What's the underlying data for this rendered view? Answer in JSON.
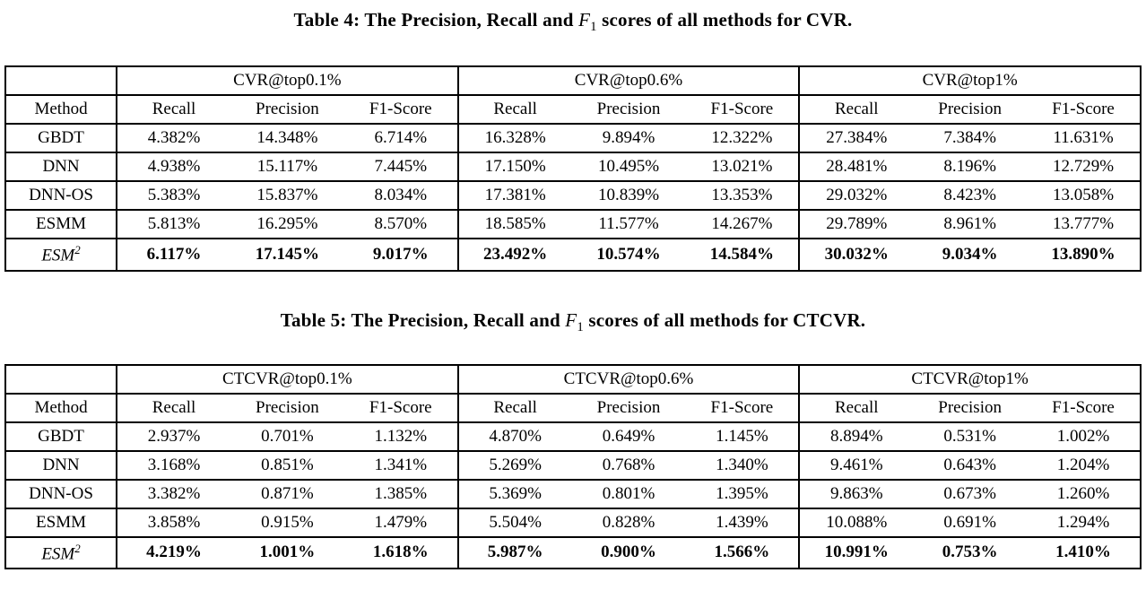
{
  "tables": [
    {
      "caption": {
        "prefix": "Table 4: The Precision, Recall and",
        "math_var": "F",
        "math_sub": "1",
        "suffix": "scores of all methods for CVR."
      },
      "method_header": "Method",
      "groups": [
        "CVR@top0.1%",
        "CVR@top0.6%",
        "CVR@top1%"
      ],
      "sub_headers": [
        "Recall",
        "Precision",
        "F1-Score"
      ],
      "rows": [
        {
          "method": "GBDT",
          "italic": false,
          "bold": false,
          "values": [
            "4.382%",
            "14.348%",
            "6.714%",
            "16.328%",
            "9.894%",
            "12.322%",
            "27.384%",
            "7.384%",
            "11.631%"
          ]
        },
        {
          "method": "DNN",
          "italic": false,
          "bold": false,
          "values": [
            "4.938%",
            "15.117%",
            "7.445%",
            "17.150%",
            "10.495%",
            "13.021%",
            "28.481%",
            "8.196%",
            "12.729%"
          ]
        },
        {
          "method": "DNN-OS",
          "italic": false,
          "bold": false,
          "values": [
            "5.383%",
            "15.837%",
            "8.034%",
            "17.381%",
            "10.839%",
            "13.353%",
            "29.032%",
            "8.423%",
            "13.058%"
          ]
        },
        {
          "method": "ESMM",
          "italic": false,
          "bold": false,
          "values": [
            "5.813%",
            "16.295%",
            "8.570%",
            "18.585%",
            "11.577%",
            "14.267%",
            "29.789%",
            "8.961%",
            "13.777%"
          ]
        },
        {
          "method": "ESM",
          "method_sup": "2",
          "italic": true,
          "bold": true,
          "values": [
            "6.117%",
            "17.145%",
            "9.017%",
            "23.492%",
            "10.574%",
            "14.584%",
            "30.032%",
            "9.034%",
            "13.890%"
          ]
        }
      ]
    },
    {
      "caption": {
        "prefix": "Table 5: The Precision, Recall and",
        "math_var": "F",
        "math_sub": "1",
        "suffix": "scores of all methods for CTCVR."
      },
      "method_header": "Method",
      "groups": [
        "CTCVR@top0.1%",
        "CTCVR@top0.6%",
        "CTCVR@top1%"
      ],
      "sub_headers": [
        "Recall",
        "Precision",
        "F1-Score"
      ],
      "rows": [
        {
          "method": "GBDT",
          "italic": false,
          "bold": false,
          "values": [
            "2.937%",
            "0.701%",
            "1.132%",
            "4.870%",
            "0.649%",
            "1.145%",
            "8.894%",
            "0.531%",
            "1.002%"
          ]
        },
        {
          "method": "DNN",
          "italic": false,
          "bold": false,
          "values": [
            "3.168%",
            "0.851%",
            "1.341%",
            "5.269%",
            "0.768%",
            "1.340%",
            "9.461%",
            "0.643%",
            "1.204%"
          ]
        },
        {
          "method": "DNN-OS",
          "italic": false,
          "bold": false,
          "values": [
            "3.382%",
            "0.871%",
            "1.385%",
            "5.369%",
            "0.801%",
            "1.395%",
            "9.863%",
            "0.673%",
            "1.260%"
          ]
        },
        {
          "method": "ESMM",
          "italic": false,
          "bold": false,
          "values": [
            "3.858%",
            "0.915%",
            "1.479%",
            "5.504%",
            "0.828%",
            "1.439%",
            "10.088%",
            "0.691%",
            "1.294%"
          ]
        },
        {
          "method": "ESM",
          "method_sup": "2",
          "italic": true,
          "bold": true,
          "values": [
            "4.219%",
            "1.001%",
            "1.618%",
            "5.987%",
            "0.900%",
            "1.566%",
            "10.991%",
            "0.753%",
            "1.410%"
          ]
        }
      ]
    }
  ]
}
